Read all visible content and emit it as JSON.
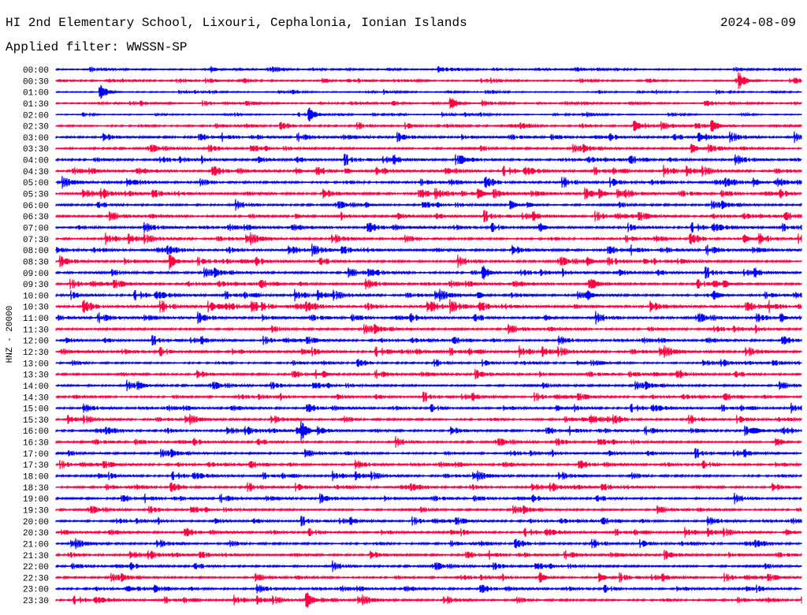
{
  "header": {
    "station": "HI 2nd Elementary School, Lixouri, Cephalonia, Ionian Islands",
    "date": "2024-08-09",
    "filter": "Applied filter: WWSSN-SP"
  },
  "chart_data": {
    "type": "line",
    "title": "HI 2nd Elementary School, Lixouri, Cephalonia, Ionian Islands",
    "ylabel": "HNZ - 20000",
    "row_minutes": 30,
    "colors": [
      "#0000ff",
      "#ff0040"
    ],
    "rows": [
      "00:00",
      "00:30",
      "01:00",
      "01:30",
      "02:00",
      "02:30",
      "03:00",
      "03:30",
      "04:00",
      "04:30",
      "05:00",
      "05:30",
      "06:00",
      "06:30",
      "07:00",
      "07:30",
      "08:00",
      "08:30",
      "09:00",
      "09:30",
      "10:00",
      "10:30",
      "11:00",
      "11:30",
      "12:00",
      "12:30",
      "13:00",
      "13:30",
      "14:00",
      "14:30",
      "15:00",
      "15:30",
      "16:00",
      "16:30",
      "17:00",
      "17:30",
      "18:00",
      "18:30",
      "19:00",
      "19:30",
      "20:00",
      "20:30",
      "21:00",
      "21:30",
      "22:00",
      "22:30",
      "23:00",
      "23:30"
    ],
    "noise_level": [
      0.2,
      0.2,
      0.15,
      0.2,
      0.15,
      0.25,
      0.3,
      0.3,
      0.35,
      0.35,
      0.35,
      0.35,
      0.3,
      0.35,
      0.35,
      0.35,
      0.35,
      0.35,
      0.35,
      0.35,
      0.35,
      0.4,
      0.35,
      0.35,
      0.3,
      0.35,
      0.25,
      0.3,
      0.3,
      0.3,
      0.3,
      0.3,
      0.3,
      0.3,
      0.3,
      0.3,
      0.3,
      0.3,
      0.3,
      0.3,
      0.3,
      0.3,
      0.3,
      0.3,
      0.3,
      0.3,
      0.3,
      0.3
    ],
    "events": [
      {
        "row": 0,
        "minute": 6.25,
        "amp": 0.7
      },
      {
        "row": 1,
        "minute": 27.5,
        "amp": 1.6
      },
      {
        "row": 2,
        "minute": 1.8,
        "amp": 1.5
      },
      {
        "row": 3,
        "minute": 15.9,
        "amp": 1.4
      },
      {
        "row": 4,
        "minute": 10.2,
        "amp": 1.5
      },
      {
        "row": 5,
        "minute": 23.3,
        "amp": 1.1
      },
      {
        "row": 5,
        "minute": 26.4,
        "amp": 1.3
      },
      {
        "row": 6,
        "minute": 25.9,
        "amp": 0.9
      },
      {
        "row": 7,
        "minute": 25.6,
        "amp": 1.0
      },
      {
        "row": 8,
        "minute": 16.3,
        "amp": 1.0
      },
      {
        "row": 9,
        "minute": 9.7,
        "amp": 0.7
      },
      {
        "row": 9,
        "minute": 11.7,
        "amp": 0.6
      },
      {
        "row": 9,
        "minute": 15.8,
        "amp": 0.6
      },
      {
        "row": 10,
        "minute": 2.9,
        "amp": 0.8
      },
      {
        "row": 10,
        "minute": 28.1,
        "amp": 0.9
      },
      {
        "row": 11,
        "minute": 14.7,
        "amp": 0.7
      },
      {
        "row": 11,
        "minute": 17.0,
        "amp": 1.3
      },
      {
        "row": 11,
        "minute": 21.9,
        "amp": 0.9
      },
      {
        "row": 12,
        "minute": 12.5,
        "amp": 0.6
      },
      {
        "row": 12,
        "minute": 18.3,
        "amp": 0.9
      },
      {
        "row": 12,
        "minute": 19.0,
        "amp": 0.7
      },
      {
        "row": 13,
        "minute": 9.7,
        "amp": 0.5
      },
      {
        "row": 14,
        "minute": 19.5,
        "amp": 0.9
      },
      {
        "row": 15,
        "minute": 27.7,
        "amp": 0.9
      },
      {
        "row": 16,
        "minute": 9.6,
        "amp": 0.6
      },
      {
        "row": 17,
        "minute": 4.6,
        "amp": 1.5
      },
      {
        "row": 17,
        "minute": 21.4,
        "amp": 0.9
      },
      {
        "row": 17,
        "minute": 23.7,
        "amp": 0.6
      },
      {
        "row": 18,
        "minute": 12.6,
        "amp": 0.7
      },
      {
        "row": 18,
        "minute": 17.2,
        "amp": 1.4
      },
      {
        "row": 19,
        "minute": 21.6,
        "amp": 1.0
      },
      {
        "row": 19,
        "minute": 26.5,
        "amp": 0.9
      },
      {
        "row": 19,
        "minute": 26.9,
        "amp": 0.8
      },
      {
        "row": 20,
        "minute": 17.0,
        "amp": 0.7
      },
      {
        "row": 20,
        "minute": 21.4,
        "amp": 1.0
      },
      {
        "row": 20,
        "minute": 26.5,
        "amp": 1.2
      },
      {
        "row": 21,
        "minute": 6.6,
        "amp": 0.6
      },
      {
        "row": 21,
        "minute": 15.1,
        "amp": 1.0
      },
      {
        "row": 22,
        "minute": 19.7,
        "amp": 0.8
      },
      {
        "row": 22,
        "minute": 29.2,
        "amp": 0.9
      },
      {
        "row": 25,
        "minute": 13.4,
        "amp": 0.5
      },
      {
        "row": 26,
        "minute": 21.0,
        "amp": 0.5
      },
      {
        "row": 27,
        "minute": 10.8,
        "amp": 0.6
      },
      {
        "row": 27,
        "minute": 24.1,
        "amp": 0.5
      },
      {
        "row": 28,
        "minute": 3.3,
        "amp": 1.0
      },
      {
        "row": 30,
        "minute": 20.2,
        "amp": 0.6
      },
      {
        "row": 31,
        "minute": 21.2,
        "amp": 0.5
      },
      {
        "row": 32,
        "minute": 9.9,
        "amp": 2.0
      },
      {
        "row": 32,
        "minute": 28.1,
        "amp": 0.8
      },
      {
        "row": 33,
        "minute": 29.0,
        "amp": 1.0
      },
      {
        "row": 41,
        "minute": 29.4,
        "amp": 0.7
      },
      {
        "row": 45,
        "minute": 19.5,
        "amp": 1.0
      },
      {
        "row": 45,
        "minute": 21.9,
        "amp": 0.9
      },
      {
        "row": 46,
        "minute": 2.9,
        "amp": 0.6
      },
      {
        "row": 47,
        "minute": 10.1,
        "amp": 1.7
      }
    ]
  }
}
